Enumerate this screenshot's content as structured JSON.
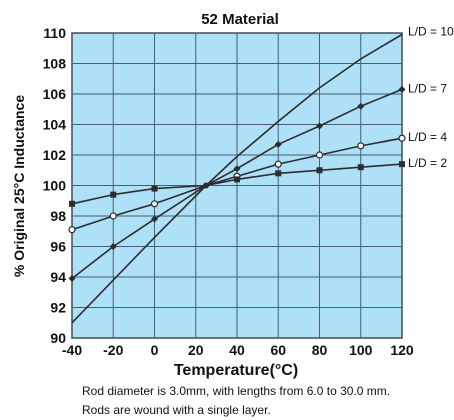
{
  "chart_data": {
    "type": "line",
    "title": "52 Material",
    "xlabel": "Temperature(°C)",
    "ylabel": "% Original 25°C Inductance",
    "xlim": [
      -40,
      120
    ],
    "ylim": [
      90,
      110
    ],
    "xticks": [
      -40,
      -20,
      0,
      20,
      40,
      60,
      80,
      100,
      120
    ],
    "yticks": [
      90,
      92,
      94,
      96,
      98,
      100,
      102,
      104,
      106,
      108,
      110
    ],
    "grid": true,
    "colors": {
      "plot_background": "#aee0f7",
      "grid": "#4a5d6b",
      "line": "#2d2d2d"
    },
    "series": [
      {
        "name": "L/D = 10",
        "marker": "none",
        "x": [
          -40,
          -20,
          0,
          25,
          40,
          60,
          80,
          100,
          120
        ],
        "y": [
          91.0,
          93.8,
          96.6,
          100.0,
          101.9,
          104.2,
          106.4,
          108.3,
          109.9
        ]
      },
      {
        "name": "L/D = 7",
        "marker": "filled-diamond",
        "x": [
          -40,
          -20,
          0,
          25,
          40,
          60,
          80,
          100,
          120
        ],
        "y": [
          93.9,
          96.0,
          97.8,
          100.0,
          101.1,
          102.7,
          103.9,
          105.2,
          106.3
        ]
      },
      {
        "name": "L/D = 4",
        "marker": "open-circle",
        "x": [
          -40,
          -20,
          0,
          25,
          40,
          60,
          80,
          100,
          120
        ],
        "y": [
          97.1,
          98.0,
          98.8,
          100.0,
          100.6,
          101.4,
          102.0,
          102.6,
          103.1
        ]
      },
      {
        "name": "L/D = 2",
        "marker": "filled-square",
        "x": [
          -40,
          -20,
          0,
          25,
          40,
          60,
          80,
          100,
          120
        ],
        "y": [
          98.8,
          99.4,
          99.8,
          100.0,
          100.4,
          100.8,
          101.0,
          101.2,
          101.4
        ]
      }
    ],
    "annotations": [
      "Rod diameter is 3.0mm, with lengths from 6.0 to 30.0 mm.",
      "Rods are wound with a single layer."
    ]
  }
}
